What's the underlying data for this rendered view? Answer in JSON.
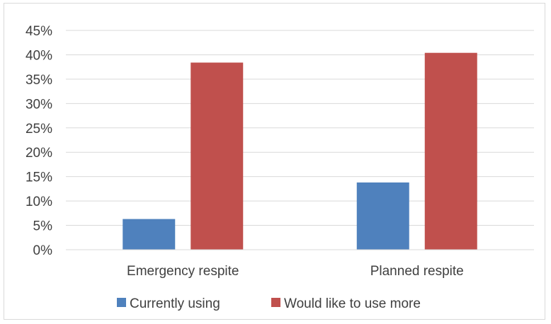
{
  "chart_data": {
    "type": "bar",
    "categories": [
      "Emergency respite",
      "Planned respite"
    ],
    "series": [
      {
        "name": "Currently using",
        "values": [
          6.3,
          13.8
        ],
        "color": "#4F81BD"
      },
      {
        "name": "Would like to use more",
        "values": [
          38.4,
          40.4
        ],
        "color": "#C0504D"
      }
    ],
    "ylim": [
      0,
      45
    ],
    "ytick_step": 5,
    "ytick_format": "percent",
    "ytick_labels": [
      "0%",
      "5%",
      "10%",
      "15%",
      "20%",
      "25%",
      "30%",
      "35%",
      "40%",
      "45%"
    ],
    "grid": true,
    "legend_position": "bottom",
    "title": "",
    "xlabel": "",
    "ylabel": ""
  }
}
